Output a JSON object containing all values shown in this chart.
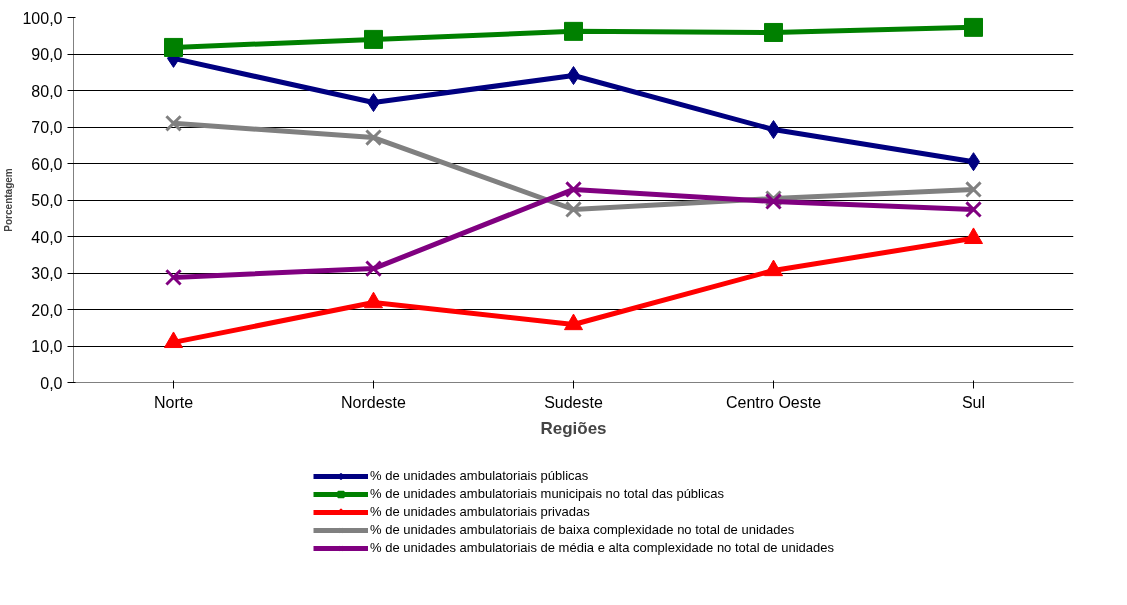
{
  "chart_data": {
    "type": "line",
    "xlabel": "Regiões",
    "ylabel": "Porcentagem",
    "categories": [
      "Norte",
      "Nordeste",
      "Sudeste",
      "Centro Oeste",
      "Sul"
    ],
    "ylim": [
      0,
      100
    ],
    "yticks": [
      {
        "value": 0,
        "label": "0,0"
      },
      {
        "value": 10,
        "label": "10,0"
      },
      {
        "value": 20,
        "label": "20,0"
      },
      {
        "value": 30,
        "label": "30,0"
      },
      {
        "value": 40,
        "label": "40,0"
      },
      {
        "value": 50,
        "label": "50,0"
      },
      {
        "value": 60,
        "label": "60,0"
      },
      {
        "value": 70,
        "label": "70,0"
      },
      {
        "value": 80,
        "label": "80,0"
      },
      {
        "value": 90,
        "label": "90,0"
      },
      {
        "value": 100,
        "label": "100,0"
      }
    ],
    "grid": "y",
    "legend": "bottom",
    "line_style": "solid",
    "series": [
      {
        "name": "% de unidades ambulatoriais públicas",
        "color": "#000080",
        "marker": "diamond",
        "values": [
          88.8,
          76.7,
          84.1,
          69.3,
          60.5
        ]
      },
      {
        "name": "% de unidades ambulatoriais municipais no total das públicas",
        "color": "#008000",
        "marker": "square",
        "values": [
          91.8,
          94.0,
          96.2,
          95.9,
          97.3
        ]
      },
      {
        "name": "% de unidades ambulatoriais privadas",
        "color": "#ff0000",
        "marker": "triangle",
        "values": [
          11.0,
          21.9,
          15.9,
          30.7,
          39.5
        ]
      },
      {
        "name": "% de unidades ambulatoriais de baixa complexidade no total de unidades",
        "color": "#808080",
        "marker": "cross",
        "values": [
          71.0,
          67.1,
          47.4,
          50.4,
          52.9
        ]
      },
      {
        "name": "% de unidades ambulatoriais de média e alta complexidade no total de unidades",
        "color": "#800080",
        "marker": "cross",
        "values": [
          28.8,
          31.2,
          52.9,
          49.6,
          47.4
        ]
      }
    ]
  }
}
